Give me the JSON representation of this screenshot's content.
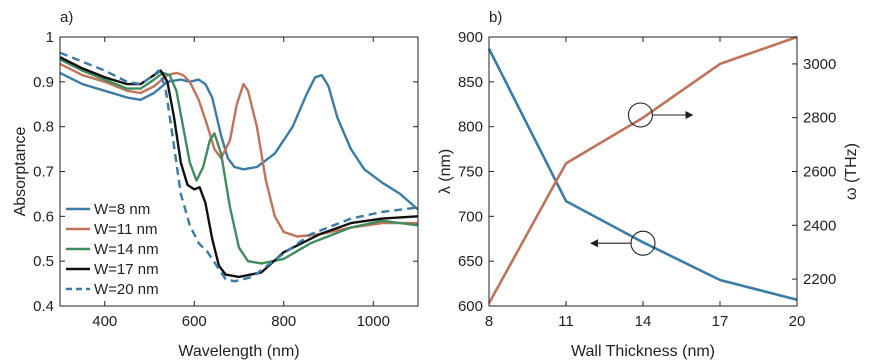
{
  "chart_data": [
    {
      "type": "line",
      "panel_label": "a)",
      "xlabel": "Wavelength (nm)",
      "ylabel": "Absorptance",
      "xlim": [
        300,
        1100
      ],
      "ylim": [
        0.4,
        1.0
      ],
      "xticks": [
        400,
        600,
        800,
        1000
      ],
      "yticks": [
        0.4,
        0.5,
        0.6,
        0.7,
        0.8,
        0.9,
        1.0
      ],
      "ytick_labels": [
        "0.4",
        "0.5",
        "0.6",
        "0.7",
        "0.8",
        "0.9",
        "1"
      ],
      "grid": false,
      "legend_position": "bottom-left",
      "series": [
        {
          "name": "W=8 nm",
          "color": "#3a7ca5",
          "style": "solid",
          "points": [
            [
              300,
              0.92
            ],
            [
              350,
              0.895
            ],
            [
              400,
              0.88
            ],
            [
              450,
              0.865
            ],
            [
              480,
              0.86
            ],
            [
              510,
              0.875
            ],
            [
              540,
              0.9
            ],
            [
              570,
              0.905
            ],
            [
              590,
              0.9
            ],
            [
              610,
              0.905
            ],
            [
              625,
              0.895
            ],
            [
              640,
              0.865
            ],
            [
              660,
              0.78
            ],
            [
              675,
              0.73
            ],
            [
              690,
              0.71
            ],
            [
              710,
              0.705
            ],
            [
              740,
              0.71
            ],
            [
              780,
              0.74
            ],
            [
              820,
              0.8
            ],
            [
              850,
              0.87
            ],
            [
              870,
              0.91
            ],
            [
              885,
              0.915
            ],
            [
              900,
              0.89
            ],
            [
              920,
              0.82
            ],
            [
              950,
              0.75
            ],
            [
              980,
              0.705
            ],
            [
              1020,
              0.675
            ],
            [
              1060,
              0.65
            ],
            [
              1100,
              0.615
            ]
          ]
        },
        {
          "name": "W=11 nm",
          "color": "#c2725a",
          "style": "solid",
          "points": [
            [
              300,
              0.94
            ],
            [
              350,
              0.915
            ],
            [
              400,
              0.9
            ],
            [
              450,
              0.88
            ],
            [
              480,
              0.875
            ],
            [
              510,
              0.89
            ],
            [
              540,
              0.915
            ],
            [
              560,
              0.92
            ],
            [
              575,
              0.915
            ],
            [
              590,
              0.9
            ],
            [
              610,
              0.86
            ],
            [
              630,
              0.8
            ],
            [
              645,
              0.75
            ],
            [
              660,
              0.73
            ],
            [
              680,
              0.77
            ],
            [
              695,
              0.85
            ],
            [
              710,
              0.895
            ],
            [
              720,
              0.88
            ],
            [
              740,
              0.8
            ],
            [
              760,
              0.68
            ],
            [
              780,
              0.6
            ],
            [
              800,
              0.565
            ],
            [
              830,
              0.555
            ],
            [
              880,
              0.56
            ],
            [
              950,
              0.575
            ],
            [
              1020,
              0.585
            ],
            [
              1100,
              0.585
            ]
          ]
        },
        {
          "name": "W=14 nm",
          "color": "#3f8c5f",
          "style": "solid",
          "points": [
            [
              300,
              0.95
            ],
            [
              350,
              0.925
            ],
            [
              400,
              0.905
            ],
            [
              450,
              0.885
            ],
            [
              480,
              0.885
            ],
            [
              510,
              0.905
            ],
            [
              530,
              0.92
            ],
            [
              545,
              0.915
            ],
            [
              560,
              0.88
            ],
            [
              575,
              0.8
            ],
            [
              590,
              0.72
            ],
            [
              605,
              0.68
            ],
            [
              620,
              0.71
            ],
            [
              635,
              0.77
            ],
            [
              645,
              0.785
            ],
            [
              660,
              0.74
            ],
            [
              680,
              0.62
            ],
            [
              700,
              0.53
            ],
            [
              720,
              0.5
            ],
            [
              750,
              0.495
            ],
            [
              800,
              0.505
            ],
            [
              860,
              0.54
            ],
            [
              950,
              0.575
            ],
            [
              1020,
              0.59
            ],
            [
              1100,
              0.58
            ]
          ]
        },
        {
          "name": "W=17 nm",
          "color": "#111111",
          "style": "solid",
          "points": [
            [
              300,
              0.955
            ],
            [
              350,
              0.93
            ],
            [
              400,
              0.91
            ],
            [
              450,
              0.895
            ],
            [
              480,
              0.895
            ],
            [
              510,
              0.915
            ],
            [
              525,
              0.925
            ],
            [
              540,
              0.9
            ],
            [
              555,
              0.82
            ],
            [
              570,
              0.72
            ],
            [
              585,
              0.67
            ],
            [
              600,
              0.66
            ],
            [
              612,
              0.665
            ],
            [
              625,
              0.63
            ],
            [
              640,
              0.55
            ],
            [
              655,
              0.49
            ],
            [
              670,
              0.47
            ],
            [
              700,
              0.465
            ],
            [
              750,
              0.475
            ],
            [
              800,
              0.52
            ],
            [
              880,
              0.56
            ],
            [
              950,
              0.585
            ],
            [
              1020,
              0.595
            ],
            [
              1100,
              0.6
            ]
          ]
        },
        {
          "name": "W=20 nm",
          "color": "#3a7ca5",
          "style": "dashed",
          "points": [
            [
              300,
              0.965
            ],
            [
              350,
              0.945
            ],
            [
              400,
              0.925
            ],
            [
              450,
              0.9
            ],
            [
              480,
              0.895
            ],
            [
              510,
              0.915
            ],
            [
              520,
              0.925
            ],
            [
              535,
              0.89
            ],
            [
              550,
              0.79
            ],
            [
              570,
              0.65
            ],
            [
              590,
              0.58
            ],
            [
              610,
              0.54
            ],
            [
              630,
              0.52
            ],
            [
              650,
              0.49
            ],
            [
              670,
              0.46
            ],
            [
              690,
              0.455
            ],
            [
              730,
              0.465
            ],
            [
              790,
              0.51
            ],
            [
              860,
              0.56
            ],
            [
              950,
              0.595
            ],
            [
              1020,
              0.61
            ],
            [
              1100,
              0.62
            ]
          ]
        }
      ]
    },
    {
      "type": "line",
      "panel_label": "b)",
      "xlabel": "Wall Thickness (nm)",
      "ylabel_left": "λ (nm)",
      "ylabel_right": "ω (THz)",
      "x": [
        8,
        11,
        14,
        17,
        20
      ],
      "xlim": [
        8,
        20
      ],
      "xticks": [
        8,
        11,
        14,
        17,
        20
      ],
      "ylim_left": [
        600,
        900
      ],
      "yticks_left": [
        600,
        650,
        700,
        750,
        800,
        850,
        900
      ],
      "ylim_right": [
        2100,
        3100
      ],
      "yticks_right": [
        2200,
        2400,
        2600,
        2800,
        3000
      ],
      "grid": false,
      "series": [
        {
          "name": "λ",
          "axis": "left",
          "color": "#3a7ca5",
          "values": [
            887,
            717,
            671,
            629,
            607
          ]
        },
        {
          "name": "ω",
          "axis": "right",
          "color": "#c2725a",
          "values": [
            2110,
            2630,
            2800,
            3000,
            3100
          ]
        }
      ],
      "annotations": [
        {
          "type": "circle-arrow",
          "x": 13.9,
          "y_axis": "right",
          "y": 2810,
          "direction": "right"
        },
        {
          "type": "circle-arrow",
          "x": 14.0,
          "y_axis": "left",
          "y": 670,
          "direction": "left"
        }
      ]
    }
  ]
}
